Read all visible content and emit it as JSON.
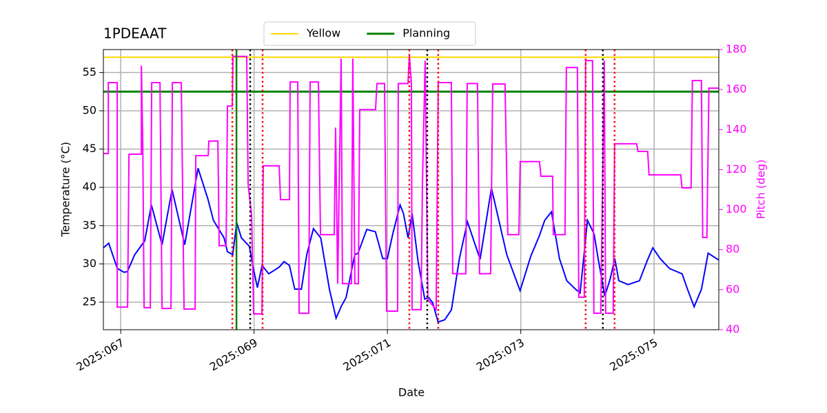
{
  "chart_data": {
    "type": "line",
    "title": "1PDEAAT",
    "xlabel": "Date",
    "ylabel": "Temperature (°C)",
    "y2label": "Pitch (deg)",
    "xlim": [
      66.74,
      75.97
    ],
    "xticks": [
      {
        "value": 67,
        "label": "2025:067"
      },
      {
        "value": 69,
        "label": "2025:069"
      },
      {
        "value": 71,
        "label": "2025:071"
      },
      {
        "value": 73,
        "label": "2025:073"
      },
      {
        "value": 75,
        "label": "2025:075"
      }
    ],
    "ylim": [
      21.4,
      58.0
    ],
    "yticks": [
      25,
      30,
      35,
      40,
      45,
      50,
      55
    ],
    "y2lim": [
      40,
      180
    ],
    "y2ticks": [
      40,
      60,
      80,
      100,
      120,
      140,
      160,
      180
    ],
    "y2color": "#ff00ff",
    "grid": true,
    "legend": "top-center",
    "hlines": [
      {
        "name": "Yellow",
        "value": 57,
        "color": "#ffd700"
      },
      {
        "name": "Planning",
        "value": 52.5,
        "color": "#008000"
      }
    ],
    "vlines": [
      {
        "x": 68.674,
        "color": "#ff0000",
        "style": "dotted"
      },
      {
        "x": 69.128,
        "color": "#ff0000",
        "style": "dotted"
      },
      {
        "x": 71.329,
        "color": "#ff0000",
        "style": "dotted"
      },
      {
        "x": 71.762,
        "color": "#ff0000",
        "style": "dotted"
      },
      {
        "x": 73.973,
        "color": "#ff0000",
        "style": "dotted"
      },
      {
        "x": 74.407,
        "color": "#ff0000",
        "style": "dotted"
      },
      {
        "x": 68.942,
        "color": "#000000",
        "style": "dotted"
      },
      {
        "x": 71.597,
        "color": "#000000",
        "style": "dotted"
      },
      {
        "x": 74.231,
        "color": "#000000",
        "style": "dotted"
      },
      {
        "x": 68.736,
        "color": "#008000",
        "style": "solid"
      }
    ],
    "series": [
      {
        "color": "#0000ff",
        "x": [
          66.74,
          66.82,
          66.95,
          67.05,
          67.1,
          67.21,
          67.36,
          67.46,
          67.62,
          67.77,
          67.96,
          68.16,
          68.31,
          68.39,
          68.55,
          68.6,
          68.68,
          68.74,
          68.81,
          68.93,
          68.98,
          69.05,
          69.12,
          69.22,
          69.38,
          69.45,
          69.53,
          69.61,
          69.71,
          69.79,
          69.89,
          70.0,
          70.13,
          70.23,
          70.31,
          70.38,
          70.51,
          70.56,
          70.69,
          70.82,
          70.93,
          71.0,
          71.08,
          71.19,
          71.24,
          71.31,
          71.37,
          71.46,
          71.56,
          71.62,
          71.68,
          71.76,
          71.86,
          71.96,
          72.08,
          72.2,
          72.39,
          72.56,
          72.79,
          72.99,
          73.15,
          73.28,
          73.36,
          73.46,
          73.58,
          73.69,
          73.82,
          73.89,
          74.0,
          74.1,
          74.16,
          74.26,
          74.34,
          74.41,
          74.47,
          74.61,
          74.78,
          74.9,
          74.98,
          75.09,
          75.23,
          75.42,
          75.5,
          75.6,
          75.71,
          75.81,
          75.97
        ],
        "values": [
          32.1,
          32.7,
          29.4,
          28.9,
          29.0,
          31.2,
          33.0,
          37.7,
          32.5,
          39.7,
          32.5,
          42.5,
          38.4,
          35.7,
          33.4,
          31.6,
          31.2,
          35.4,
          33.4,
          32.3,
          29.8,
          26.9,
          29.8,
          28.7,
          29.6,
          30.3,
          29.8,
          26.7,
          26.7,
          31.2,
          34.6,
          33.4,
          26.7,
          22.9,
          24.5,
          25.6,
          31.2,
          31.4,
          34.5,
          34.2,
          30.7,
          30.7,
          33.9,
          37.7,
          36.6,
          33.4,
          36.6,
          30.3,
          25.4,
          25.6,
          24.9,
          22.4,
          22.7,
          24.0,
          30.7,
          35.5,
          30.6,
          39.9,
          31.2,
          26.5,
          31.0,
          33.7,
          35.7,
          36.8,
          30.7,
          27.8,
          26.7,
          26.2,
          35.7,
          33.9,
          30.7,
          25.8,
          28.0,
          30.7,
          27.8,
          27.3,
          27.8,
          30.5,
          32.1,
          30.7,
          29.4,
          28.7,
          26.7,
          24.4,
          26.7,
          31.4,
          30.5
        ]
      },
      {
        "color": "#ff00ff",
        "axis": "y2",
        "x": [
          66.742,
          66.814,
          66.814,
          66.948,
          66.948,
          67.103,
          67.124,
          67.31,
          67.31,
          67.331,
          67.351,
          67.444,
          67.465,
          67.589,
          67.62,
          67.754,
          67.775,
          67.909,
          67.95,
          68.116,
          68.126,
          68.312,
          68.322,
          68.457,
          68.477,
          68.581,
          68.601,
          68.674,
          68.684,
          68.89,
          68.911,
          68.963,
          68.994,
          69.118,
          69.138,
          69.376,
          69.397,
          69.531,
          69.541,
          69.655,
          69.676,
          69.82,
          69.841,
          69.965,
          69.996,
          70.202,
          70.223,
          70.254,
          70.306,
          70.326,
          70.461,
          70.481,
          70.512,
          70.564,
          70.585,
          70.822,
          70.843,
          70.957,
          70.988,
          71.153,
          71.163,
          71.308,
          71.329,
          71.36,
          71.37,
          71.504,
          71.525,
          71.566,
          71.607,
          71.731,
          71.762,
          71.959,
          71.979,
          72.176,
          72.196,
          72.351,
          72.382,
          72.548,
          72.579,
          72.764,
          72.806,
          72.971,
          72.992,
          73.281,
          73.302,
          73.477,
          73.488,
          73.663,
          73.684,
          73.849,
          73.87,
          73.952,
          73.973,
          74.076,
          74.097,
          74.2,
          74.252,
          74.273,
          74.386,
          74.407,
          74.738,
          74.758,
          74.903,
          74.924,
          75.399,
          75.419,
          75.554,
          75.574,
          75.709,
          75.729,
          75.791,
          75.822,
          75.967
        ],
        "values": [
          128,
          128,
          163.5,
          163.5,
          51.3,
          51.3,
          127.7,
          127.7,
          172,
          132.5,
          51,
          51,
          163.5,
          163.5,
          50.6,
          50.6,
          163.5,
          163.5,
          50.3,
          50.3,
          127,
          127,
          134.3,
          134.3,
          82,
          82,
          151.8,
          151.8,
          176.6,
          176.6,
          112.6,
          97.4,
          47.9,
          47.9,
          121.9,
          121.9,
          105,
          105,
          163.8,
          163.8,
          48.2,
          48.2,
          163.8,
          163.8,
          87.5,
          87.5,
          141,
          63,
          175.5,
          63,
          63,
          175.5,
          63,
          63,
          150,
          150,
          163,
          163,
          49.3,
          49.3,
          163,
          163,
          177.2,
          163,
          50,
          50,
          112.6,
          174.5,
          55,
          50,
          163.5,
          163.5,
          68,
          68,
          163,
          163,
          68,
          68,
          162.8,
          162.8,
          87.5,
          87.5,
          124,
          124,
          116.7,
          116.7,
          87.5,
          87.5,
          171,
          171,
          56.2,
          56.2,
          174.5,
          174.5,
          48.2,
          48.2,
          174.5,
          48.2,
          48.2,
          132.9,
          132.9,
          129.1,
          129.1,
          117.4,
          117.4,
          110.9,
          110.9,
          164.5,
          164.5,
          86.1,
          86.1,
          160.7,
          160.7
        ]
      }
    ]
  }
}
